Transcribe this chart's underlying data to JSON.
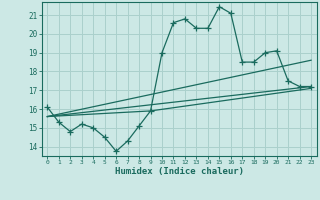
{
  "xlabel": "Humidex (Indice chaleur)",
  "bg_color": "#cce8e5",
  "grid_color": "#aad0cc",
  "line_color": "#1a6b5e",
  "xlim": [
    -0.5,
    23.5
  ],
  "ylim": [
    13.5,
    21.7
  ],
  "yticks": [
    14,
    15,
    16,
    17,
    18,
    19,
    20,
    21
  ],
  "xticks": [
    0,
    1,
    2,
    3,
    4,
    5,
    6,
    7,
    8,
    9,
    10,
    11,
    12,
    13,
    14,
    15,
    16,
    17,
    18,
    19,
    20,
    21,
    22,
    23
  ],
  "curve1_x": [
    0,
    1,
    2,
    3,
    4,
    5,
    6,
    7,
    8,
    9,
    10,
    11,
    12,
    13,
    14,
    15,
    16,
    17,
    18,
    19,
    20,
    21,
    22,
    23
  ],
  "curve1_y": [
    16.1,
    15.3,
    14.8,
    15.2,
    15.0,
    14.5,
    13.75,
    14.3,
    15.1,
    15.9,
    19.0,
    20.6,
    20.8,
    20.3,
    20.3,
    21.45,
    21.1,
    18.5,
    18.5,
    19.0,
    19.1,
    17.5,
    17.2,
    17.2
  ],
  "curve2_x": [
    0,
    23
  ],
  "curve2_y": [
    15.6,
    18.6
  ],
  "curve3_x": [
    0,
    23
  ],
  "curve3_y": [
    15.6,
    17.2
  ],
  "curve4_x": [
    0,
    9,
    23
  ],
  "curve4_y": [
    15.6,
    15.9,
    17.1
  ]
}
